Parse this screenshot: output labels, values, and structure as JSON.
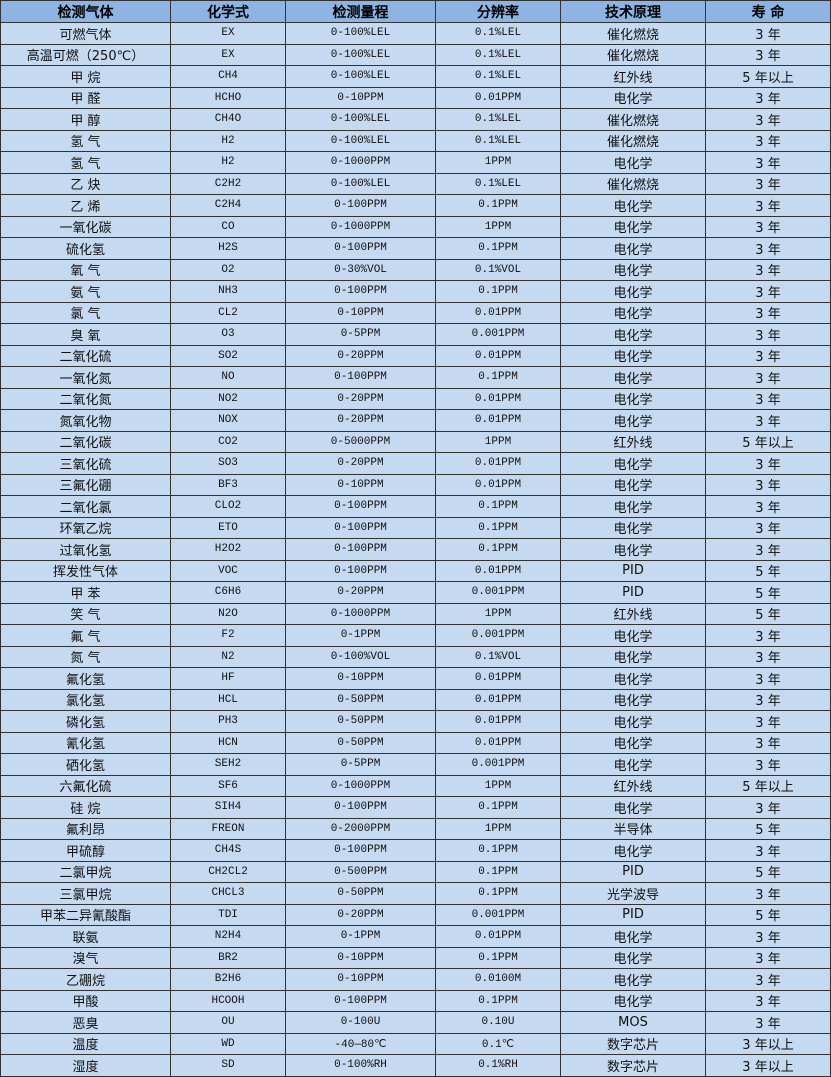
{
  "table": {
    "headers": [
      "检测气体",
      "化学式",
      "检测量程",
      "分辨率",
      "技术原理",
      "寿 命"
    ],
    "rows": [
      [
        "可燃气体",
        "EX",
        "0-100%LEL",
        "0.1%LEL",
        "催化燃烧",
        "3 年"
      ],
      [
        "高温可燃（250℃）",
        "EX",
        "0-100%LEL",
        "0.1%LEL",
        "催化燃烧",
        "3 年"
      ],
      [
        "甲 烷",
        "CH4",
        "0-100%LEL",
        "0.1%LEL",
        "红外线",
        "5 年以上"
      ],
      [
        "甲 醛",
        "HCHO",
        "0-10PPM",
        "0.01PPM",
        "电化学",
        "3 年"
      ],
      [
        "甲 醇",
        "CH4O",
        "0-100%LEL",
        "0.1%LEL",
        "催化燃烧",
        "3 年"
      ],
      [
        "氢 气",
        "H2",
        "0-100%LEL",
        "0.1%LEL",
        "催化燃烧",
        "3 年"
      ],
      [
        "氢 气",
        "H2",
        "0-1000PPM",
        "1PPM",
        "电化学",
        "3 年"
      ],
      [
        "乙 炔",
        "C2H2",
        "0-100%LEL",
        "0.1%LEL",
        "催化燃烧",
        "3 年"
      ],
      [
        "乙 烯",
        "C2H4",
        "0-100PPM",
        "0.1PPM",
        "电化学",
        "3 年"
      ],
      [
        "一氧化碳",
        "CO",
        "0-1000PPM",
        "1PPM",
        "电化学",
        "3 年"
      ],
      [
        "硫化氢",
        "H2S",
        "0-100PPM",
        "0.1PPM",
        "电化学",
        "3 年"
      ],
      [
        "氧 气",
        "O2",
        "0-30%VOL",
        "0.1%VOL",
        "电化学",
        "3 年"
      ],
      [
        "氨 气",
        "NH3",
        "0-100PPM",
        "0.1PPM",
        "电化学",
        "3 年"
      ],
      [
        "氯 气",
        "CL2",
        "0-10PPM",
        "0.01PPM",
        "电化学",
        "3 年"
      ],
      [
        "臭 氧",
        "O3",
        "0-5PPM",
        "0.001PPM",
        "电化学",
        "3 年"
      ],
      [
        "二氧化硫",
        "SO2",
        "0-20PPM",
        "0.01PPM",
        "电化学",
        "3 年"
      ],
      [
        "一氧化氮",
        "NO",
        "0-100PPM",
        "0.1PPM",
        "电化学",
        "3 年"
      ],
      [
        "二氧化氮",
        "NO2",
        "0-20PPM",
        "0.01PPM",
        "电化学",
        "3 年"
      ],
      [
        "氮氧化物",
        "NOX",
        "0-20PPM",
        "0.01PPM",
        "电化学",
        "3 年"
      ],
      [
        "二氧化碳",
        "CO2",
        "0-5000PPM",
        "1PPM",
        "红外线",
        "5 年以上"
      ],
      [
        "三氧化硫",
        "SO3",
        "0-20PPM",
        "0.01PPM",
        "电化学",
        "3 年"
      ],
      [
        "三氟化硼",
        "BF3",
        "0-10PPM",
        "0.01PPM",
        "电化学",
        "3 年"
      ],
      [
        "二氧化氯",
        "CLO2",
        "0-100PPM",
        "0.1PPM",
        "电化学",
        "3 年"
      ],
      [
        "环氧乙烷",
        "ETO",
        "0-100PPM",
        "0.1PPM",
        "电化学",
        "3 年"
      ],
      [
        "过氧化氢",
        "H2O2",
        "0-100PPM",
        "0.1PPM",
        "电化学",
        "3 年"
      ],
      [
        "挥发性气体",
        "VOC",
        "0-100PPM",
        "0.01PPM",
        "PID",
        "5 年"
      ],
      [
        "甲 苯",
        "C6H6",
        "0-20PPM",
        "0.001PPM",
        "PID",
        "5 年"
      ],
      [
        "笑 气",
        "N2O",
        "0-1000PPM",
        "1PPM",
        "红外线",
        "5 年"
      ],
      [
        "氟 气",
        "F2",
        "0-1PPM",
        "0.001PPM",
        "电化学",
        "3 年"
      ],
      [
        "氮 气",
        "N2",
        "0-100%VOL",
        "0.1%VOL",
        "电化学",
        "3 年"
      ],
      [
        "氟化氢",
        "HF",
        "0-10PPM",
        "0.01PPM",
        "电化学",
        "3 年"
      ],
      [
        "氯化氢",
        "HCL",
        "0-50PPM",
        "0.01PPM",
        "电化学",
        "3 年"
      ],
      [
        "磷化氢",
        "PH3",
        "0-50PPM",
        "0.01PPM",
        "电化学",
        "3 年"
      ],
      [
        "氰化氢",
        "HCN",
        "0-50PPM",
        "0.01PPM",
        "电化学",
        "3 年"
      ],
      [
        "硒化氢",
        "SEH2",
        "0-5PPM",
        "0.001PPM",
        "电化学",
        "3 年"
      ],
      [
        "六氟化硫",
        "SF6",
        "0-1000PPM",
        "1PPM",
        "红外线",
        "5 年以上"
      ],
      [
        "硅 烷",
        "SIH4",
        "0-100PPM",
        "0.1PPM",
        "电化学",
        "3 年"
      ],
      [
        "氟利昂",
        "FREON",
        "0-2000PPM",
        "1PPM",
        "半导体",
        "5 年"
      ],
      [
        "甲硫醇",
        "CH4S",
        "0-100PPM",
        "0.1PPM",
        "电化学",
        "3 年"
      ],
      [
        "二氯甲烷",
        "CH2CL2",
        "0-500PPM",
        "0.1PPM",
        "PID",
        "5 年"
      ],
      [
        "三氯甲烷",
        "CHCL3",
        "0-50PPM",
        "0.1PPM",
        "光学波导",
        "3 年"
      ],
      [
        "甲苯二异氰酸酯",
        "TDI",
        "0-20PPM",
        "0.001PPM",
        "PID",
        "5 年"
      ],
      [
        "联氨",
        "N2H4",
        "0-1PPM",
        "0.01PPM",
        "电化学",
        "3 年"
      ],
      [
        "溴气",
        "BR2",
        "0-10PPM",
        "0.1PPM",
        "电化学",
        "3 年"
      ],
      [
        "乙硼烷",
        "B2H6",
        "0-10PPM",
        "0.0100M",
        "电化学",
        "3 年"
      ],
      [
        "甲酸",
        "HCOOH",
        "0-100PPM",
        "0.1PPM",
        "电化学",
        "3 年"
      ],
      [
        "恶臭",
        "OU",
        "0-100U",
        "0.10U",
        "MOS",
        "3 年"
      ],
      [
        "温度",
        "WD",
        "-40—80℃",
        "0.1℃",
        "数字芯片",
        "3 年以上"
      ],
      [
        "湿度",
        "SD",
        "0-100%RH",
        "0.1%RH",
        "数字芯片",
        "3 年以上"
      ]
    ]
  },
  "colors": {
    "header": "#8db4e2",
    "row": "#c5d9f1",
    "border": "#333333"
  }
}
